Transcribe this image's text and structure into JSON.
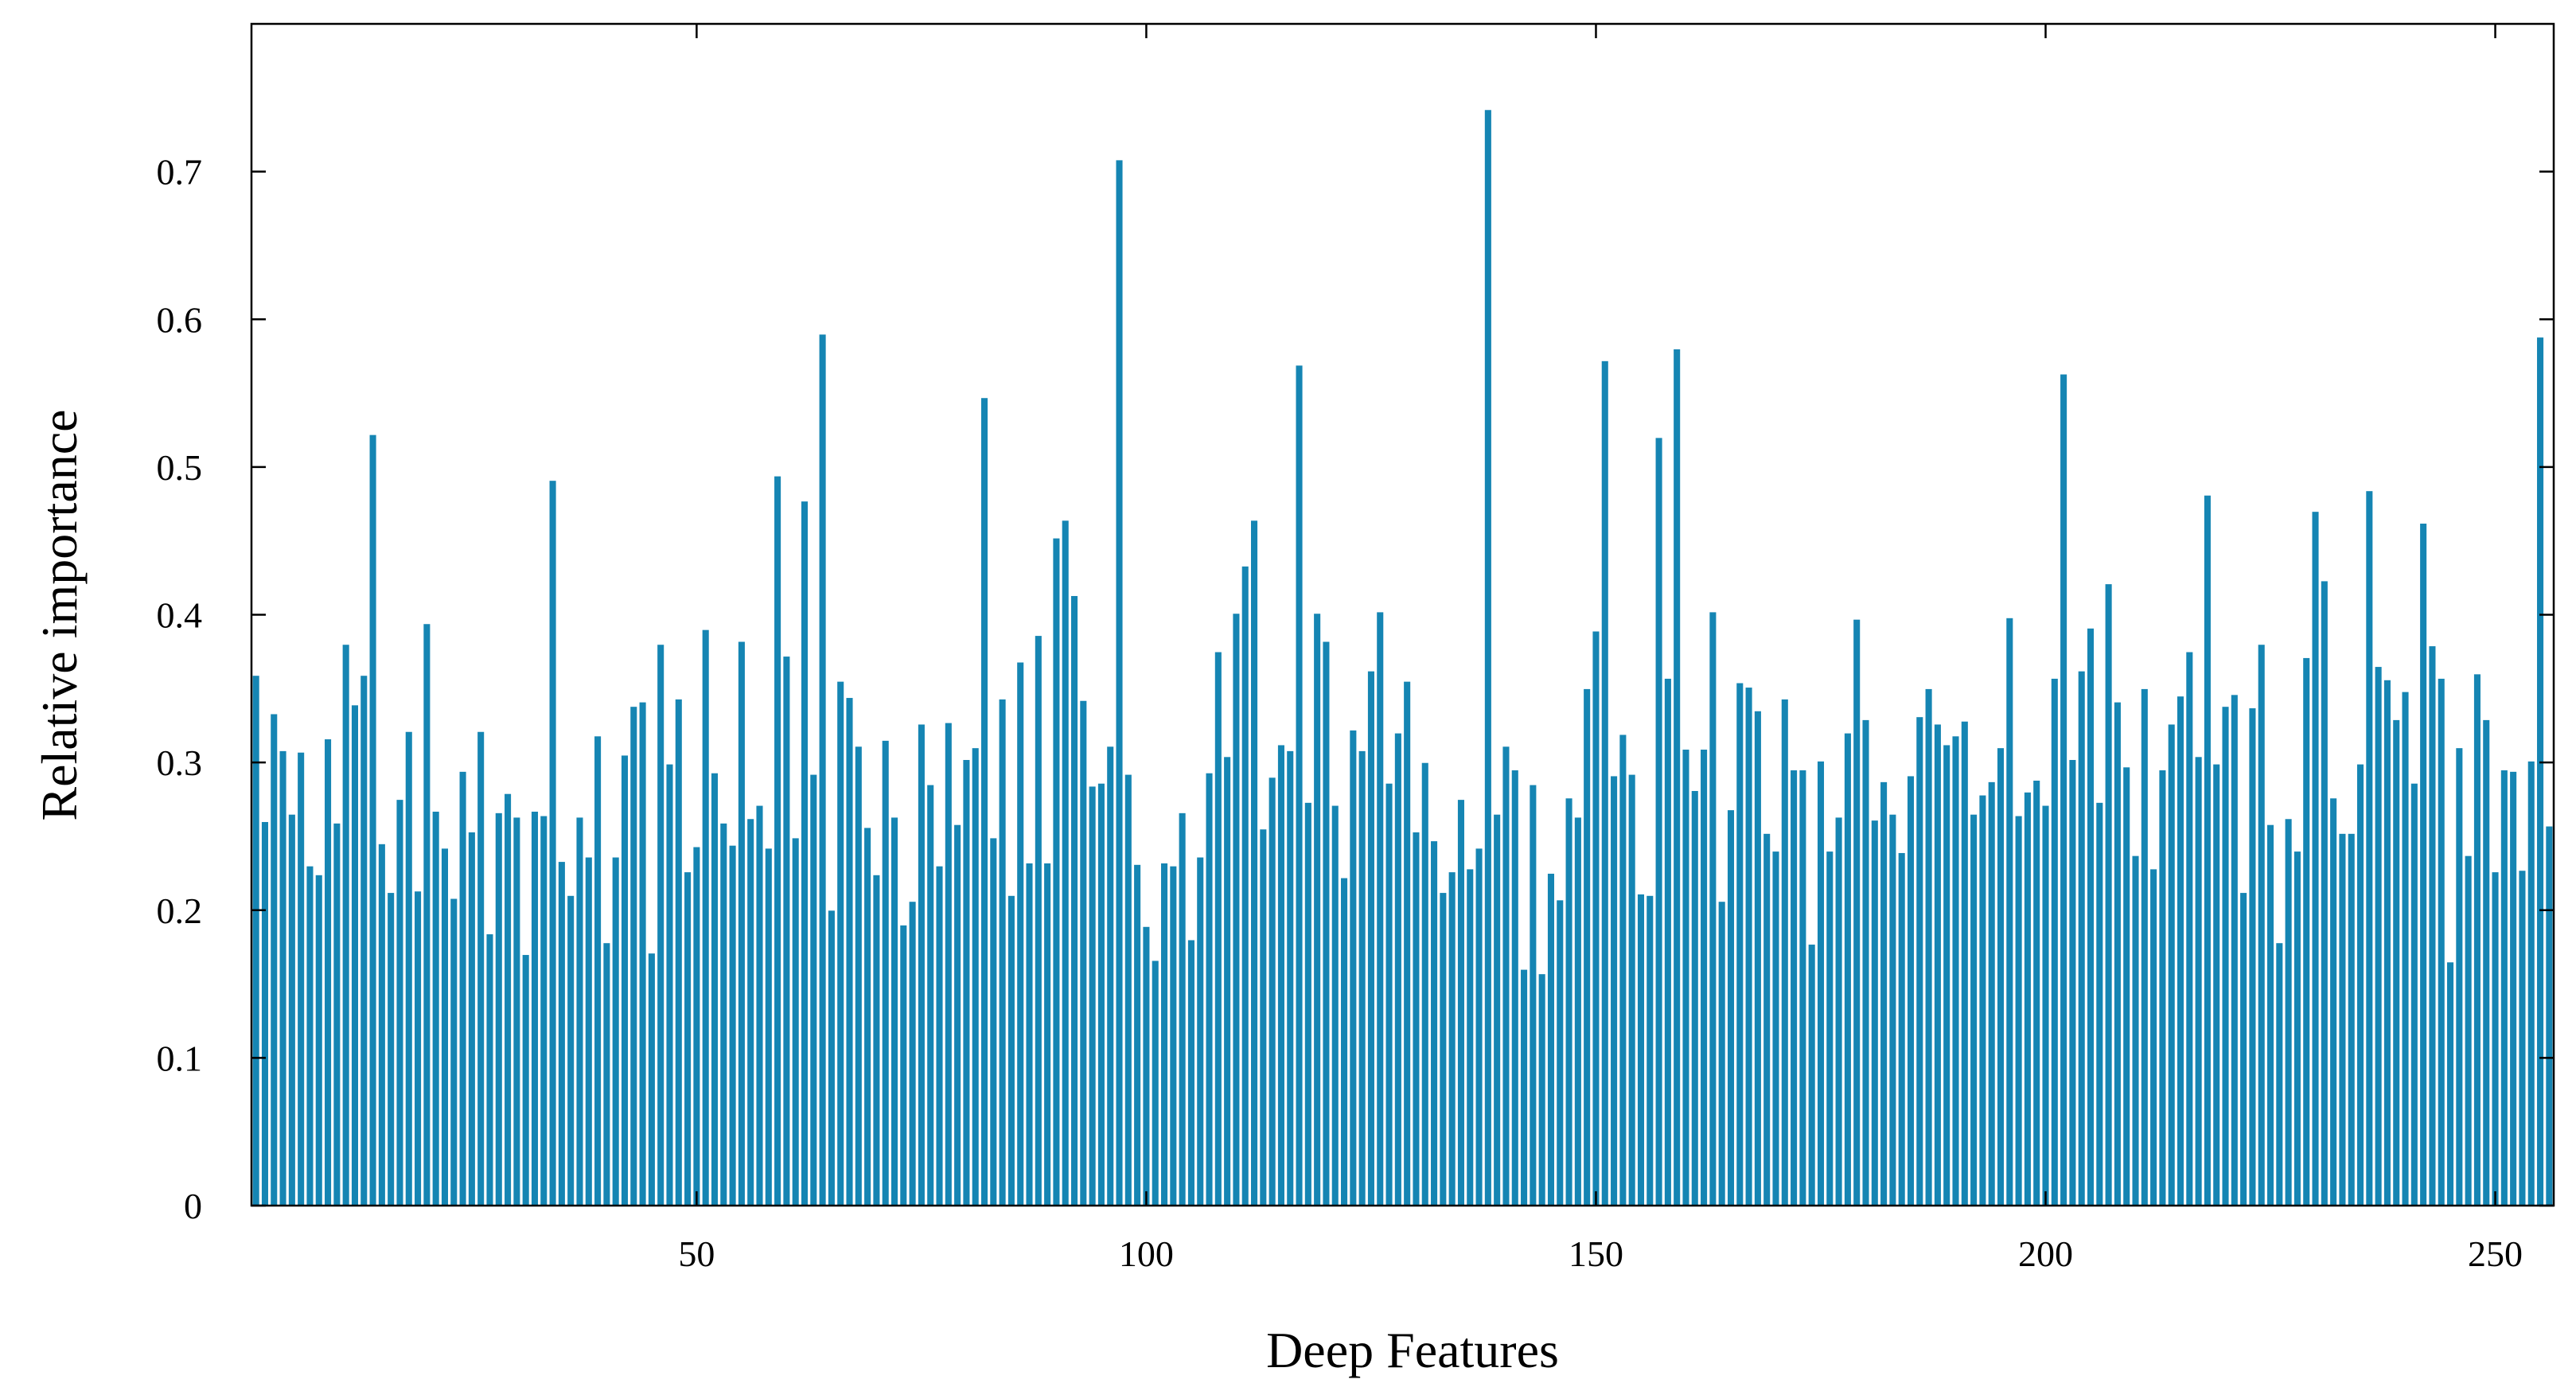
{
  "chart_data": {
    "type": "bar",
    "title": "",
    "xlabel": "Deep Features",
    "ylabel": "Relative importance",
    "xlim": [
      0.5,
      256.5
    ],
    "ylim": [
      0,
      0.8
    ],
    "x_ticks": [
      50,
      100,
      150,
      200,
      250
    ],
    "y_ticks": [
      0,
      0.1,
      0.2,
      0.3,
      0.4,
      0.5,
      0.6,
      0.7
    ],
    "y_tick_labels": [
      "0",
      "0.1",
      "0.2",
      "0.3",
      "0.4",
      "0.5",
      "0.6",
      "0.7"
    ],
    "grid": false,
    "legend": "none",
    "bar_color": "#1585B3",
    "x": [
      1,
      2,
      3,
      4,
      5,
      6,
      7,
      8,
      9,
      10,
      11,
      12,
      13,
      14,
      15,
      16,
      17,
      18,
      19,
      20,
      21,
      22,
      23,
      24,
      25,
      26,
      27,
      28,
      29,
      30,
      31,
      32,
      33,
      34,
      35,
      36,
      37,
      38,
      39,
      40,
      41,
      42,
      43,
      44,
      45,
      46,
      47,
      48,
      49,
      50,
      51,
      52,
      53,
      54,
      55,
      56,
      57,
      58,
      59,
      60,
      61,
      62,
      63,
      64,
      65,
      66,
      67,
      68,
      69,
      70,
      71,
      72,
      73,
      74,
      75,
      76,
      77,
      78,
      79,
      80,
      81,
      82,
      83,
      84,
      85,
      86,
      87,
      88,
      89,
      90,
      91,
      92,
      93,
      94,
      95,
      96,
      97,
      98,
      99,
      100,
      101,
      102,
      103,
      104,
      105,
      106,
      107,
      108,
      109,
      110,
      111,
      112,
      113,
      114,
      115,
      116,
      117,
      118,
      119,
      120,
      121,
      122,
      123,
      124,
      125,
      126,
      127,
      128,
      129,
      130,
      131,
      132,
      133,
      134,
      135,
      136,
      137,
      138,
      139,
      140,
      141,
      142,
      143,
      144,
      145,
      146,
      147,
      148,
      149,
      150,
      151,
      152,
      153,
      154,
      155,
      156,
      157,
      158,
      159,
      160,
      161,
      162,
      163,
      164,
      165,
      166,
      167,
      168,
      169,
      170,
      171,
      172,
      173,
      174,
      175,
      176,
      177,
      178,
      179,
      180,
      181,
      182,
      183,
      184,
      185,
      186,
      187,
      188,
      189,
      190,
      191,
      192,
      193,
      194,
      195,
      196,
      197,
      198,
      199,
      200,
      201,
      202,
      203,
      204,
      205,
      206,
      207,
      208,
      209,
      210,
      211,
      212,
      213,
      214,
      215,
      216,
      217,
      218,
      219,
      220,
      221,
      222,
      223,
      224,
      225,
      226,
      227,
      228,
      229,
      230,
      231,
      232,
      233,
      234,
      235,
      236,
      237,
      238,
      239,
      240,
      241,
      242,
      243,
      244,
      245,
      246,
      247,
      248,
      249,
      250,
      251,
      252,
      253,
      254,
      255,
      256
    ],
    "values": [
      0.359,
      0.26,
      0.333,
      0.308,
      0.265,
      0.307,
      0.23,
      0.224,
      0.316,
      0.259,
      0.38,
      0.339,
      0.359,
      0.522,
      0.245,
      0.212,
      0.275,
      0.321,
      0.213,
      0.394,
      0.267,
      0.242,
      0.208,
      0.294,
      0.253,
      0.321,
      0.184,
      0.266,
      0.279,
      0.263,
      0.17,
      0.267,
      0.264,
      0.491,
      0.233,
      0.21,
      0.263,
      0.236,
      0.318,
      0.178,
      0.236,
      0.305,
      0.338,
      0.341,
      0.171,
      0.38,
      0.299,
      0.343,
      0.226,
      0.243,
      0.39,
      0.293,
      0.259,
      0.244,
      0.382,
      0.262,
      0.271,
      0.242,
      0.494,
      0.372,
      0.249,
      0.477,
      0.292,
      0.59,
      0.2,
      0.355,
      0.344,
      0.311,
      0.256,
      0.224,
      0.315,
      0.263,
      0.19,
      0.206,
      0.326,
      0.285,
      0.23,
      0.327,
      0.258,
      0.302,
      0.31,
      0.547,
      0.249,
      0.343,
      0.21,
      0.368,
      0.232,
      0.386,
      0.232,
      0.452,
      0.464,
      0.413,
      0.342,
      0.284,
      0.286,
      0.311,
      0.708,
      0.292,
      0.231,
      0.189,
      0.166,
      0.232,
      0.23,
      0.266,
      0.18,
      0.236,
      0.293,
      0.375,
      0.304,
      0.401,
      0.433,
      0.464,
      0.255,
      0.29,
      0.312,
      0.308,
      0.569,
      0.273,
      0.401,
      0.382,
      0.271,
      0.222,
      0.322,
      0.308,
      0.362,
      0.402,
      0.286,
      0.32,
      0.355,
      0.253,
      0.3,
      0.247,
      0.212,
      0.226,
      0.275,
      0.228,
      0.242,
      0.742,
      0.265,
      0.311,
      0.295,
      0.16,
      0.285,
      0.157,
      0.225,
      0.207,
      0.276,
      0.263,
      0.35,
      0.389,
      0.572,
      0.291,
      0.319,
      0.292,
      0.211,
      0.21,
      0.52,
      0.357,
      0.58,
      0.309,
      0.281,
      0.309,
      0.402,
      0.206,
      0.268,
      0.354,
      0.351,
      0.335,
      0.252,
      0.24,
      0.343,
      0.295,
      0.295,
      0.177,
      0.301,
      0.24,
      0.263,
      0.32,
      0.397,
      0.329,
      0.261,
      0.287,
      0.265,
      0.239,
      0.291,
      0.331,
      0.35,
      0.326,
      0.312,
      0.318,
      0.328,
      0.265,
      0.278,
      0.287,
      0.31,
      0.398,
      0.264,
      0.28,
      0.288,
      0.271,
      0.357,
      0.563,
      0.302,
      0.362,
      0.391,
      0.273,
      0.421,
      0.341,
      0.297,
      0.237,
      0.35,
      0.228,
      0.295,
      0.326,
      0.345,
      0.375,
      0.304,
      0.481,
      0.299,
      0.338,
      0.346,
      0.212,
      0.337,
      0.38,
      0.258,
      0.178,
      0.262,
      0.24,
      0.371,
      0.47,
      0.423,
      0.276,
      0.252,
      0.252,
      0.299,
      0.484,
      0.365,
      0.356,
      0.329,
      0.348,
      0.286,
      0.462,
      0.379,
      0.357,
      0.165,
      0.31,
      0.237,
      0.36,
      0.329,
      0.226,
      0.295,
      0.294,
      0.227,
      0.301,
      0.588,
      0.257
    ]
  }
}
